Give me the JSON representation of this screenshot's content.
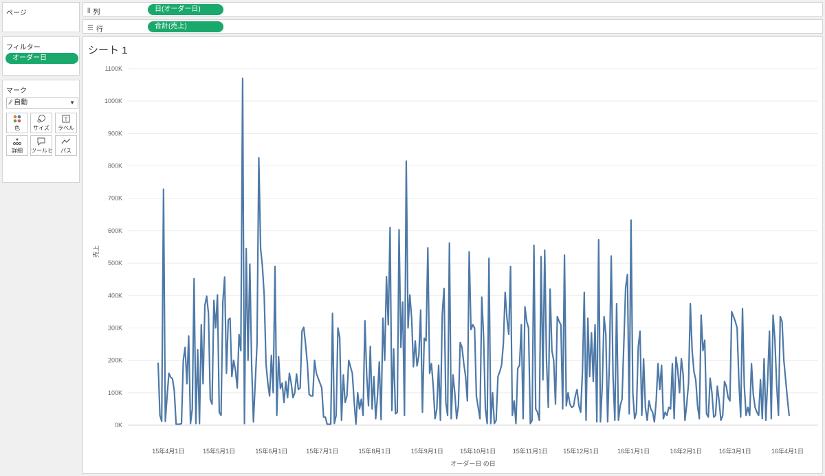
{
  "pages_panel": {
    "title": "ページ"
  },
  "filters_panel": {
    "title": "フィルター",
    "items": [
      "オーダー日"
    ]
  },
  "marks_panel": {
    "title": "マーク",
    "mark_type": "自動",
    "buttons": [
      {
        "label": "色",
        "icon": "color-icon"
      },
      {
        "label": "サイズ",
        "icon": "size-icon"
      },
      {
        "label": "ラベル",
        "icon": "label-icon"
      },
      {
        "label": "詳細",
        "icon": "detail-icon"
      },
      {
        "label": "ツールヒ...",
        "icon": "tooltip-icon"
      },
      {
        "label": "パス",
        "icon": "path-icon"
      }
    ]
  },
  "columns_shelf": {
    "label": "列",
    "pill": "日(オーダー日)"
  },
  "rows_shelf": {
    "label": "行",
    "pill": "合計(売上)"
  },
  "sheet": {
    "title": "シート 1"
  },
  "colors": {
    "line": "#4e79a7",
    "pill": "#1aa86c",
    "grid": "#ececec"
  },
  "chart_data": {
    "type": "line",
    "xlabel": "オーダー日 の日",
    "ylabel": "売上",
    "x_tick_labels": [
      "15年4月1日",
      "15年5月1日",
      "15年6月1日",
      "15年7月1日",
      "15年8月1日",
      "15年9月1日",
      "15年10月1日",
      "15年11月1日",
      "15年12月1日",
      "16年1月1日",
      "16年2月1日",
      "16年3月1日",
      "16年4月1日"
    ],
    "y_tick_labels": [
      "0K",
      "100K",
      "200K",
      "300K",
      "400K",
      "500K",
      "600K",
      "700K",
      "800K",
      "900K",
      "1000K",
      "1100K"
    ],
    "ylim": [
      0,
      1100000
    ],
    "grid": "horizontal",
    "x_start": "2015-03-26",
    "x_end": "2016-04-02",
    "series": [
      {
        "values": [
          193000,
          30000,
          12000,
          728000,
          12000,
          90000,
          160000,
          148000,
          143000,
          105000,
          3000,
          3000,
          3000,
          5000,
          200000,
          240000,
          128000,
          275000,
          5000,
          50000,
          452000,
          5000,
          233000,
          5000,
          310000,
          128000,
          370000,
          398000,
          345000,
          80000,
          65000,
          385000,
          300000,
          402000,
          40000,
          30000,
          380000,
          457000,
          160000,
          325000,
          330000,
          150000,
          200000,
          170000,
          115000,
          280000,
          230000,
          1070000,
          5000,
          545000,
          200000,
          497000,
          190000,
          10000,
          130000,
          250000,
          825000,
          545000,
          490000,
          400000,
          190000,
          130000,
          90000,
          215000,
          100000,
          490000,
          30000,
          212000,
          113000,
          130000,
          70000,
          135000,
          85000,
          160000,
          130000,
          85000,
          100000,
          158000,
          110000,
          115000,
          290000,
          302000,
          250000,
          190000,
          95000,
          90000,
          90000,
          200000,
          160000,
          145000,
          130000,
          115000,
          25000,
          25000,
          3000,
          3000,
          3000,
          345000,
          5000,
          30000,
          300000,
          270000,
          15000,
          155000,
          70000,
          90000,
          200000,
          180000,
          160000,
          75000,
          3000,
          100000,
          50000,
          80000,
          30000,
          322000,
          155000,
          60000,
          243000,
          50000,
          150000,
          20000,
          90000,
          195000,
          17000,
          330000,
          200000,
          458000,
          310000,
          610000,
          45000,
          235000,
          35000,
          40000,
          603000,
          240000,
          380000,
          30000,
          815000,
          300000,
          402000,
          330000,
          180000,
          260000,
          183000,
          215000,
          355000,
          40000,
          268000,
          260000,
          547000,
          160000,
          190000,
          120000,
          20000,
          50000,
          185000,
          15000,
          340000,
          422000,
          70000,
          30000,
          562000,
          20000,
          155000,
          100000,
          20000,
          60000,
          255000,
          240000,
          190000,
          150000,
          75000,
          535000,
          295000,
          310000,
          300000,
          90000,
          55000,
          20000,
          395000,
          275000,
          50000,
          5000,
          515000,
          5000,
          100000,
          5000,
          15000,
          150000,
          165000,
          185000,
          250000,
          410000,
          330000,
          280000,
          490000,
          30000,
          75000,
          5000,
          175000,
          185000,
          310000,
          20000,
          365000,
          320000,
          300000,
          5000,
          15000,
          555000,
          50000,
          40000,
          15000,
          520000,
          140000,
          540000,
          200000,
          55000,
          420000,
          230000,
          200000,
          65000,
          335000,
          320000,
          310000,
          50000,
          525000,
          60000,
          100000,
          65000,
          55000,
          58000,
          90000,
          110000,
          60000,
          40000,
          165000,
          410000,
          15000,
          330000,
          150000,
          285000,
          135000,
          310000,
          10000,
          572000,
          10000,
          120000,
          335000,
          280000,
          10000,
          200000,
          522000,
          150000,
          15000,
          375000,
          15000,
          60000,
          80000,
          250000,
          425000,
          465000,
          35000,
          633000,
          100000,
          20000,
          40000,
          240000,
          290000,
          30000,
          205000,
          55000,
          15000,
          75000,
          50000,
          40000,
          10000,
          75000,
          190000,
          110000,
          185000,
          20000,
          40000,
          30000,
          55000,
          50000,
          190000,
          20000,
          210000,
          170000,
          100000,
          205000,
          155000,
          15000,
          65000,
          130000,
          375000,
          230000,
          165000,
          140000,
          60000,
          20000,
          340000,
          230000,
          262000,
          35000,
          25000,
          145000,
          100000,
          25000,
          30000,
          120000,
          75000,
          15000,
          30000,
          135000,
          120000,
          85000,
          75000,
          350000,
          335000,
          320000,
          300000,
          135000,
          25000,
          360000,
          120000,
          30000,
          55000,
          30000,
          190000,
          95000,
          55000,
          40000,
          30000,
          140000,
          20000,
          205000,
          15000,
          140000,
          290000,
          20000,
          340000,
          265000,
          125000,
          30000,
          335000,
          320000,
          200000,
          140000,
          80000,
          28000
        ]
      }
    ]
  }
}
